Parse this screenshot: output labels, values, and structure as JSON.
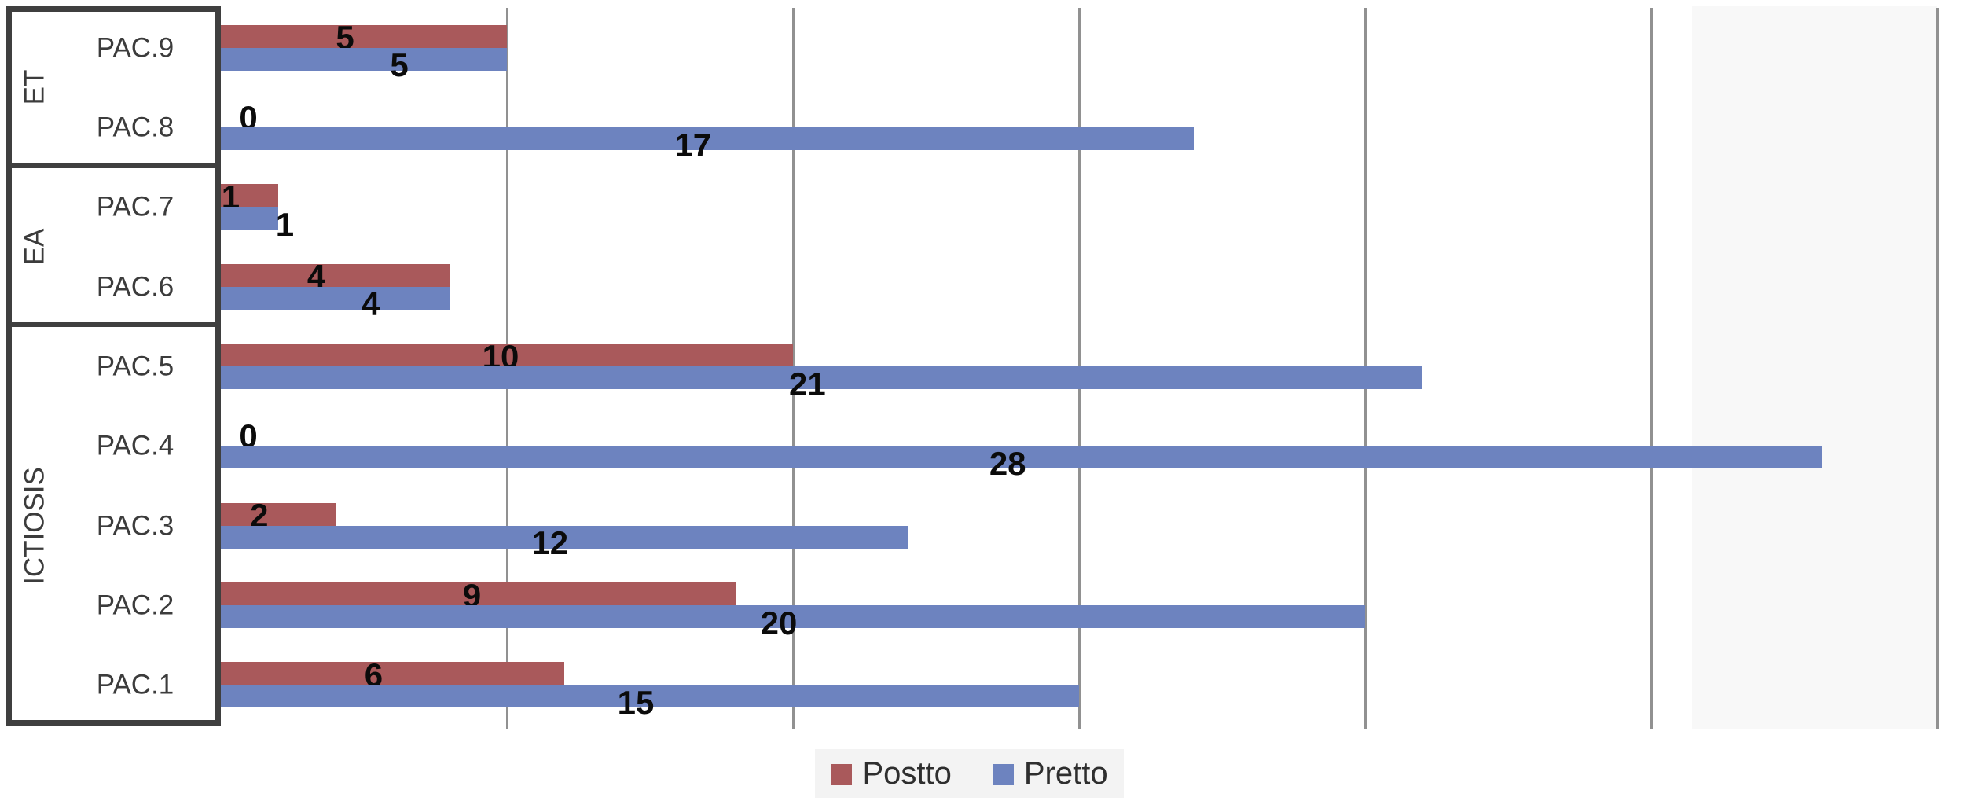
{
  "chart_data": {
    "type": "bar",
    "orientation": "horizontal",
    "title": "",
    "xlabel": "",
    "ylabel": "",
    "categories": [
      "PAC.9",
      "PAC.8",
      "PAC.7",
      "PAC.6",
      "PAC.5",
      "PAC.4",
      "PAC.3",
      "PAC.2",
      "PAC.1"
    ],
    "groups": [
      {
        "label": "ET",
        "count": 2
      },
      {
        "label": "EA",
        "count": 2
      },
      {
        "label": "ICTIOSIS",
        "count": 5
      }
    ],
    "series": [
      {
        "name": "Postto",
        "color": "#a9595b",
        "values": [
          5,
          0,
          1,
          4,
          10,
          0,
          2,
          9,
          6
        ]
      },
      {
        "name": "Pretto",
        "color": "#6d83bf",
        "values": [
          5,
          17,
          1,
          4,
          21,
          28,
          12,
          20,
          15
        ]
      }
    ],
    "data_labels_shown": true,
    "xlim": [
      0,
      30.6
    ],
    "gridline_values": [
      5,
      10,
      15,
      20,
      25,
      30
    ],
    "grid_on": true,
    "legend_position": "bottom"
  },
  "colors": {
    "gridline": "#919191",
    "panel_border": "#3f3f3f",
    "category_text": "#3c3c3c",
    "data_label_text": "#0b0b0b",
    "legend_background": "#f3f3f3"
  }
}
